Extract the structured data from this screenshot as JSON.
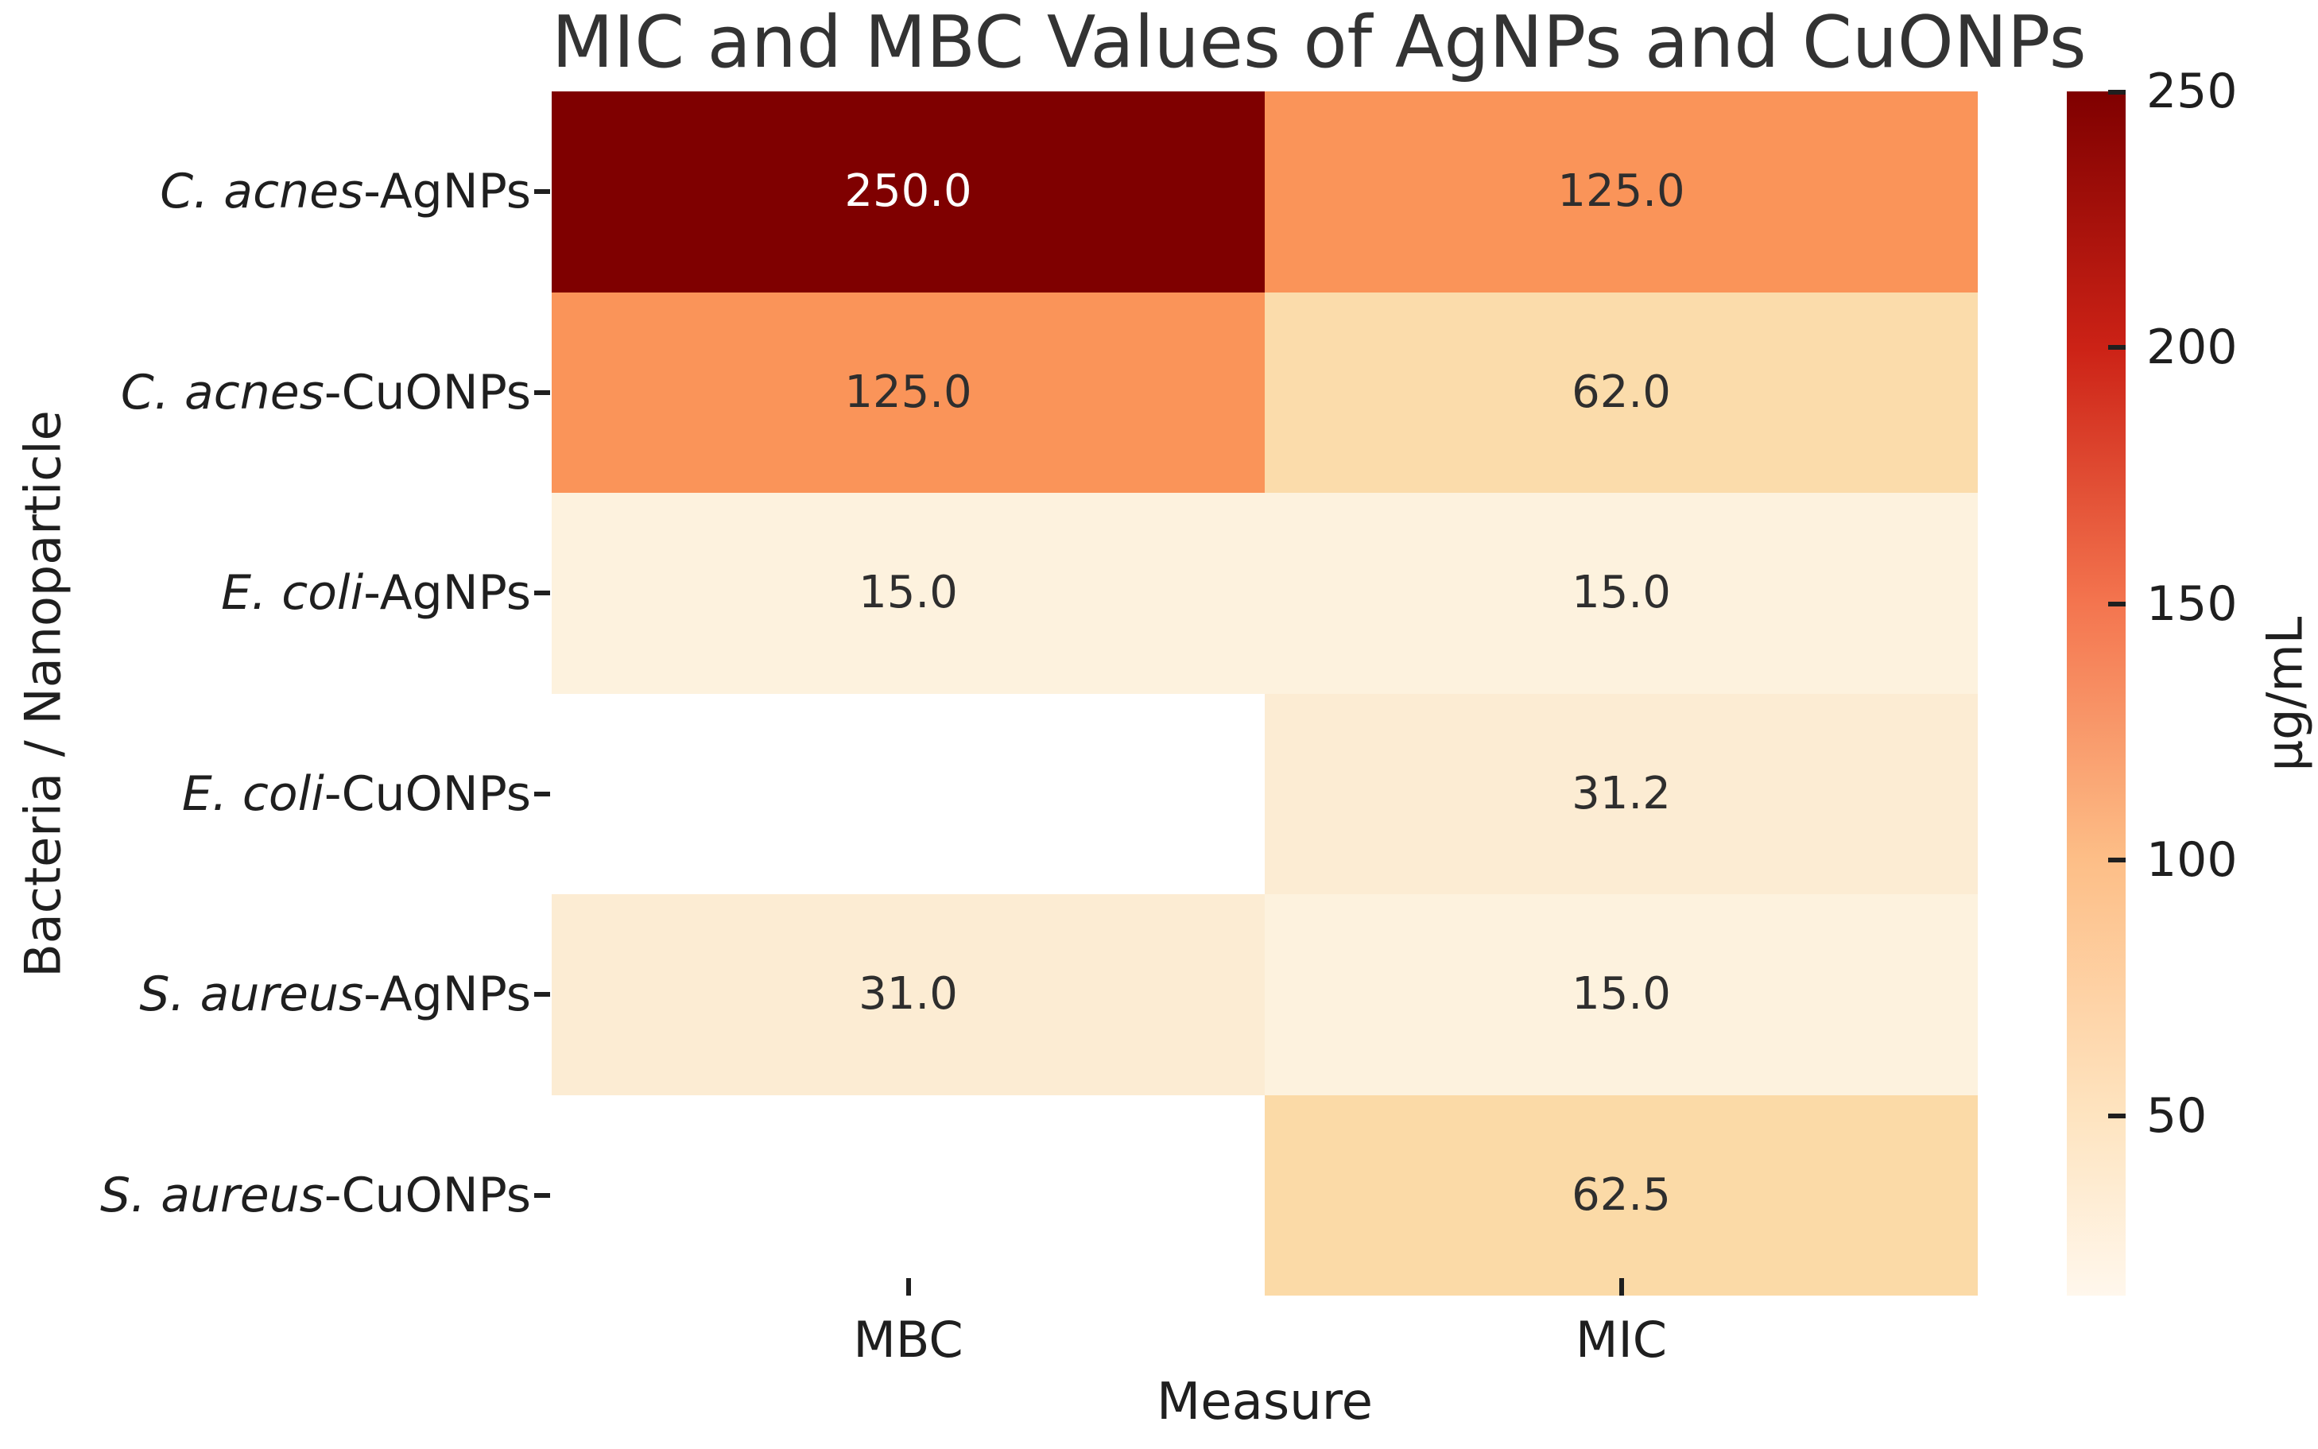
{
  "figure": {
    "title": "MIC and MBC Values of AgNPs and CuONPs",
    "x_axis": {
      "label": "Measure",
      "tick_labels": [
        "MBC",
        "MIC"
      ]
    },
    "y_axis": {
      "label": "Bacteria / Nanoparticle",
      "tick_labels": [
        {
          "italic": "C. acnes",
          "rest": "-AgNPs"
        },
        {
          "italic": "C. acnes",
          "rest": "-CuONPs"
        },
        {
          "italic": "E. coli",
          "rest": "-AgNPs"
        },
        {
          "italic": "E. coli",
          "rest": "-CuONPs"
        },
        {
          "italic": "S. aureus",
          "rest": "-AgNPs"
        },
        {
          "italic": "S. aureus",
          "rest": "-CuONPs"
        }
      ]
    },
    "colorbar": {
      "label": "µg/mL",
      "tick_labels": [
        "250",
        "200",
        "150",
        "100",
        "50"
      ],
      "tick_values": [
        250,
        200,
        150,
        100,
        50
      ]
    }
  },
  "chart_data": {
    "type": "heatmap",
    "title": "MIC and MBC Values of AgNPs and CuONPs",
    "xlabel": "Measure",
    "ylabel": "Bacteria / Nanoparticle",
    "columns": [
      "MBC",
      "MIC"
    ],
    "rows": [
      "C. acnes-AgNPs",
      "C. acnes-CuONPs",
      "E. coli-AgNPs",
      "E. coli-CuONPs",
      "S. aureus-AgNPs",
      "S. aureus-CuONPs"
    ],
    "values": [
      [
        250.0,
        125.0
      ],
      [
        125.0,
        62.0
      ],
      [
        15.0,
        15.0
      ],
      [
        null,
        31.2
      ],
      [
        31.0,
        15.0
      ],
      [
        null,
        62.5
      ]
    ],
    "annotations": [
      [
        "250.0",
        "125.0"
      ],
      [
        "125.0",
        "62.0"
      ],
      [
        "15.0",
        "15.0"
      ],
      [
        "",
        "31.2"
      ],
      [
        "31.0",
        "15.0"
      ],
      [
        "",
        "62.5"
      ]
    ],
    "colormap": "OrRd",
    "vmin": 15,
    "vmax": 250,
    "colorbar_label": "µg/mL",
    "colorbar_ticks": [
      250,
      200,
      150,
      100,
      50
    ],
    "grid": false,
    "legend_position": "right-colorbar"
  },
  "style": {
    "text_color": "#1f1f1f",
    "title_color": "#333333",
    "annot_text_dark": "#2e2e2e",
    "annot_text_light": "#ffffff",
    "nan_cell_color": "#ffffff",
    "accent_dark_red": "#7f0000",
    "cell_colors": [
      [
        "#7f0000",
        "#fa9459"
      ],
      [
        "#fa9459",
        "#fbdcab"
      ],
      [
        "#fdf2de",
        "#fdf2de"
      ],
      [
        "#ffffff",
        "#fcecd3"
      ],
      [
        "#fcecd3",
        "#fdf2de"
      ],
      [
        "#ffffff",
        "#fbdaa7"
      ]
    ],
    "cell_text_colors": [
      [
        "#ffffff",
        "#2e2e2e"
      ],
      [
        "#2e2e2e",
        "#2e2e2e"
      ],
      [
        "#2e2e2e",
        "#2e2e2e"
      ],
      [
        "",
        "#2e2e2e"
      ],
      [
        "#2e2e2e",
        "#2e2e2e"
      ],
      [
        "",
        "#2e2e2e"
      ]
    ],
    "colorbar_gradient": [
      "#7f0000",
      "#cc2216",
      "#f4754f",
      "#fdbe87",
      "#fee4c0",
      "#fff7ec"
    ],
    "colorbar_gradient_stops": [
      0,
      21.3,
      42.6,
      63.8,
      85.1,
      100
    ]
  }
}
